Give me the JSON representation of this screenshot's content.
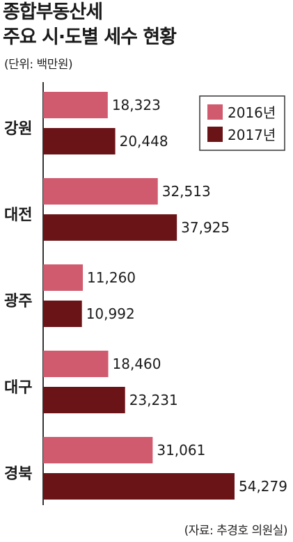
{
  "header": {
    "title_line1": "종합부동산세",
    "title_line2": "주요 시·도별 세수 현황",
    "unit": "(단위: 백만원)"
  },
  "source": "(자료: 추경호 의원실)",
  "colors": {
    "2016": "#d05a6e",
    "2017": "#6b1418",
    "axis": "#333333"
  },
  "chart_data": {
    "type": "bar",
    "orientation": "horizontal",
    "categories": [
      "강원",
      "대전",
      "광주",
      "대구",
      "경북"
    ],
    "series": [
      {
        "name": "2016년",
        "values": [
          18323,
          32513,
          11260,
          18460,
          31061
        ],
        "labels": [
          "18,323",
          "32,513",
          "11,260",
          "18,460",
          "31,061"
        ]
      },
      {
        "name": "2017년",
        "values": [
          20448,
          37925,
          10992,
          23231,
          54279
        ],
        "labels": [
          "20,448",
          "37,925",
          "10,992",
          "23,231",
          "54,279"
        ]
      }
    ],
    "legend_position": "top-right",
    "grid": false
  }
}
